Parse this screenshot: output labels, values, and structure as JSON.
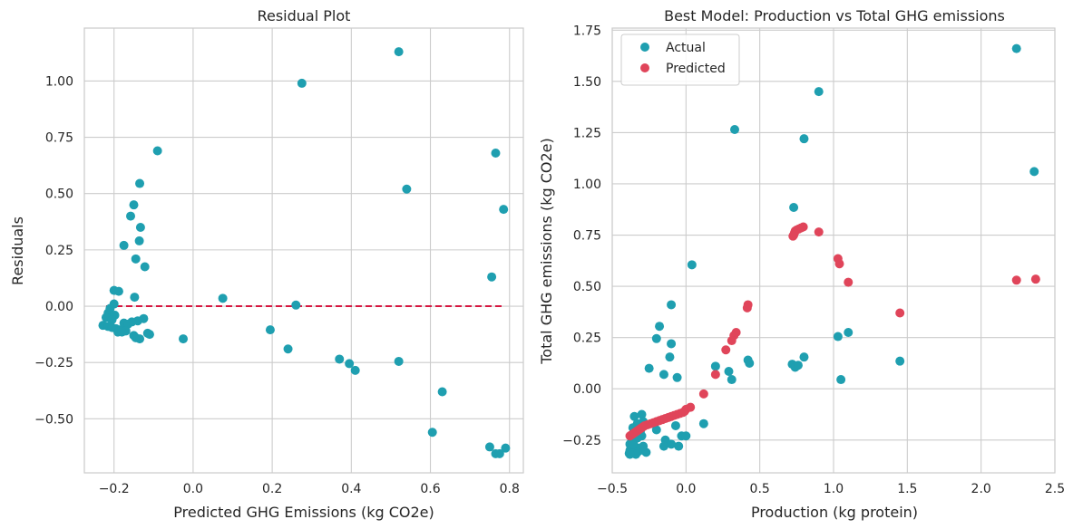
{
  "chart_data": [
    {
      "type": "scatter",
      "title": "Residual Plot",
      "xlabel": "Predicted GHG Emissions (kg CO2e)",
      "ylabel": "Residuals",
      "xlim": [
        -0.275,
        0.835
      ],
      "ylim": [
        -0.74,
        1.235
      ],
      "xticks": [
        -0.2,
        0.0,
        0.2,
        0.4,
        0.6,
        0.8
      ],
      "xtick_labels": [
        "−0.2",
        "0.0",
        "0.2",
        "0.4",
        "0.6",
        "0.8"
      ],
      "yticks": [
        -0.5,
        -0.25,
        0.0,
        0.25,
        0.5,
        0.75,
        1.0
      ],
      "ytick_labels": [
        "−0.50",
        "−0.25",
        "0.00",
        "0.25",
        "0.50",
        "0.75",
        "1.00"
      ],
      "grid": true,
      "point_color": "#1f9fb0",
      "reference_line": {
        "y": 0,
        "x_range": [
          -0.22,
          0.78
        ],
        "color": "#d6163f",
        "style": "dashed"
      },
      "points": [
        [
          0.52,
          1.13
        ],
        [
          0.275,
          0.99
        ],
        [
          -0.09,
          0.69
        ],
        [
          0.765,
          0.68
        ],
        [
          -0.135,
          0.545
        ],
        [
          0.54,
          0.52
        ],
        [
          -0.15,
          0.45
        ],
        [
          0.785,
          0.43
        ],
        [
          -0.158,
          0.4
        ],
        [
          -0.133,
          0.35
        ],
        [
          -0.136,
          0.29
        ],
        [
          -0.175,
          0.27
        ],
        [
          -0.145,
          0.21
        ],
        [
          -0.122,
          0.175
        ],
        [
          0.755,
          0.13
        ],
        [
          -0.2,
          0.07
        ],
        [
          -0.188,
          0.066
        ],
        [
          -0.148,
          0.04
        ],
        [
          0.075,
          0.035
        ],
        [
          0.26,
          0.005
        ],
        [
          -0.2,
          0.01
        ],
        [
          -0.21,
          -0.01
        ],
        [
          -0.215,
          -0.03
        ],
        [
          -0.198,
          -0.04
        ],
        [
          -0.22,
          -0.05
        ],
        [
          -0.205,
          -0.06
        ],
        [
          -0.125,
          -0.055
        ],
        [
          -0.14,
          -0.065
        ],
        [
          -0.155,
          -0.07
        ],
        [
          -0.175,
          -0.075
        ],
        [
          -0.165,
          -0.08
        ],
        [
          -0.228,
          -0.085
        ],
        [
          -0.215,
          -0.09
        ],
        [
          -0.205,
          -0.095
        ],
        [
          -0.195,
          -0.1
        ],
        [
          -0.185,
          -0.105
        ],
        [
          -0.17,
          -0.11
        ],
        [
          -0.19,
          -0.115
        ],
        [
          -0.18,
          -0.115
        ],
        [
          -0.115,
          -0.12
        ],
        [
          -0.11,
          -0.125
        ],
        [
          -0.15,
          -0.13
        ],
        [
          -0.145,
          -0.14
        ],
        [
          -0.135,
          -0.145
        ],
        [
          -0.025,
          -0.145
        ],
        [
          0.195,
          -0.105
        ],
        [
          0.24,
          -0.19
        ],
        [
          0.37,
          -0.235
        ],
        [
          0.395,
          -0.255
        ],
        [
          0.41,
          -0.285
        ],
        [
          0.52,
          -0.245
        ],
        [
          0.63,
          -0.38
        ],
        [
          0.605,
          -0.56
        ],
        [
          0.75,
          -0.625
        ],
        [
          0.765,
          -0.655
        ],
        [
          0.775,
          -0.655
        ],
        [
          0.79,
          -0.63
        ]
      ]
    },
    {
      "type": "scatter",
      "title": "Best Model: Production vs Total GHG emissions",
      "xlabel": "Production (kg protein)",
      "ylabel": "Total GHG emissions (kg CO2e)",
      "xlim": [
        -0.5,
        2.5
      ],
      "ylim": [
        -0.41,
        1.76
      ],
      "xticks": [
        -0.5,
        0.0,
        0.5,
        1.0,
        1.5,
        2.0,
        2.5
      ],
      "xtick_labels": [
        "−0.5",
        "0.0",
        "0.5",
        "1.0",
        "1.5",
        "2.0",
        "2.5"
      ],
      "yticks": [
        -0.25,
        0.0,
        0.25,
        0.5,
        0.75,
        1.0,
        1.25,
        1.5,
        1.75
      ],
      "ytick_labels": [
        "−0.25",
        "0.00",
        "0.25",
        "0.50",
        "0.75",
        "1.00",
        "1.25",
        "1.50",
        "1.75"
      ],
      "grid": true,
      "legend_position": "top-left",
      "series": [
        {
          "name": "Actual",
          "color": "#1f9fb0",
          "points": [
            [
              2.24,
              1.66
            ],
            [
              0.9,
              1.45
            ],
            [
              0.33,
              1.265
            ],
            [
              0.8,
              1.22
            ],
            [
              2.36,
              1.06
            ],
            [
              0.73,
              0.885
            ],
            [
              0.04,
              0.605
            ],
            [
              -0.1,
              0.41
            ],
            [
              -0.18,
              0.305
            ],
            [
              -0.2,
              0.245
            ],
            [
              -0.1,
              0.22
            ],
            [
              1.1,
              0.275
            ],
            [
              1.03,
              0.255
            ],
            [
              0.2,
              0.11
            ],
            [
              0.29,
              0.085
            ],
            [
              0.31,
              0.045
            ],
            [
              0.42,
              0.14
            ],
            [
              0.43,
              0.125
            ],
            [
              0.72,
              0.12
            ],
            [
              0.74,
              0.105
            ],
            [
              0.76,
              0.115
            ],
            [
              0.8,
              0.155
            ],
            [
              1.05,
              0.045
            ],
            [
              1.45,
              0.135
            ],
            [
              -0.11,
              0.155
            ],
            [
              -0.25,
              0.1
            ],
            [
              -0.15,
              0.07
            ],
            [
              -0.06,
              0.055
            ],
            [
              0.12,
              -0.17
            ],
            [
              -0.07,
              -0.18
            ],
            [
              -0.2,
              -0.2
            ],
            [
              -0.03,
              -0.23
            ],
            [
              0.0,
              -0.23
            ],
            [
              -0.14,
              -0.25
            ],
            [
              -0.1,
              -0.27
            ],
            [
              -0.05,
              -0.28
            ],
            [
              -0.15,
              -0.28
            ],
            [
              -0.3,
              -0.125
            ],
            [
              -0.35,
              -0.135
            ],
            [
              -0.29,
              -0.16
            ],
            [
              -0.33,
              -0.17
            ],
            [
              -0.36,
              -0.19
            ],
            [
              -0.31,
              -0.21
            ],
            [
              -0.3,
              -0.23
            ],
            [
              -0.33,
              -0.24
            ],
            [
              -0.35,
              -0.25
            ],
            [
              -0.37,
              -0.26
            ],
            [
              -0.38,
              -0.27
            ],
            [
              -0.36,
              -0.28
            ],
            [
              -0.34,
              -0.285
            ],
            [
              -0.32,
              -0.29
            ],
            [
              -0.3,
              -0.295
            ],
            [
              -0.38,
              -0.3
            ],
            [
              -0.37,
              -0.305
            ],
            [
              -0.35,
              -0.31
            ],
            [
              -0.33,
              -0.31
            ],
            [
              -0.31,
              -0.3
            ],
            [
              -0.29,
              -0.3
            ],
            [
              -0.385,
              -0.315
            ],
            [
              -0.36,
              -0.315
            ],
            [
              -0.34,
              -0.32
            ],
            [
              -0.38,
              -0.32
            ],
            [
              -0.27,
              -0.31
            ],
            [
              -0.29,
              -0.28
            ],
            [
              -0.36,
              -0.27
            ]
          ]
        },
        {
          "name": "Predicted",
          "color": "#e0455a",
          "points": [
            [
              0.795,
              0.79
            ],
            [
              0.78,
              0.785
            ],
            [
              0.765,
              0.78
            ],
            [
              0.75,
              0.775
            ],
            [
              0.74,
              0.77
            ],
            [
              0.735,
              0.76
            ],
            [
              0.73,
              0.75
            ],
            [
              0.725,
              0.745
            ],
            [
              0.9,
              0.765
            ],
            [
              1.03,
              0.635
            ],
            [
              1.04,
              0.61
            ],
            [
              1.1,
              0.52
            ],
            [
              1.45,
              0.37
            ],
            [
              2.24,
              0.53
            ],
            [
              2.37,
              0.535
            ],
            [
              0.42,
              0.41
            ],
            [
              0.415,
              0.395
            ],
            [
              0.34,
              0.275
            ],
            [
              0.325,
              0.26
            ],
            [
              0.31,
              0.235
            ],
            [
              0.27,
              0.19
            ],
            [
              0.2,
              0.07
            ],
            [
              0.12,
              -0.025
            ],
            [
              0.03,
              -0.09
            ],
            [
              0.0,
              -0.1
            ],
            [
              -0.01,
              -0.11
            ],
            [
              -0.02,
              -0.115
            ],
            [
              -0.04,
              -0.12
            ],
            [
              -0.06,
              -0.125
            ],
            [
              -0.08,
              -0.13
            ],
            [
              -0.1,
              -0.135
            ],
            [
              -0.12,
              -0.14
            ],
            [
              -0.14,
              -0.145
            ],
            [
              -0.16,
              -0.15
            ],
            [
              -0.18,
              -0.155
            ],
            [
              -0.2,
              -0.16
            ],
            [
              -0.22,
              -0.165
            ],
            [
              -0.24,
              -0.17
            ],
            [
              -0.26,
              -0.175
            ],
            [
              -0.28,
              -0.18
            ],
            [
              -0.3,
              -0.19
            ],
            [
              -0.32,
              -0.2
            ],
            [
              -0.34,
              -0.21
            ],
            [
              -0.36,
              -0.22
            ],
            [
              -0.37,
              -0.225
            ],
            [
              -0.38,
              -0.23
            ],
            [
              -0.35,
              -0.215
            ],
            [
              -0.33,
              -0.205
            ],
            [
              -0.31,
              -0.195
            ],
            [
              -0.29,
              -0.185
            ]
          ]
        }
      ]
    }
  ]
}
